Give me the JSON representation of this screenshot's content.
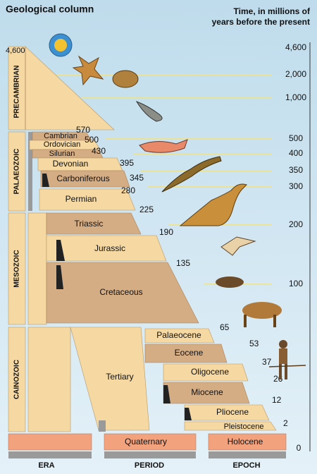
{
  "header": {
    "title": "Geological column",
    "time_label": [
      "Time, in millions of",
      "years before the present"
    ]
  },
  "top_left_label": "4,600",
  "eras": [
    {
      "label": "PRECAMBRIAN"
    },
    {
      "label": "PALAEOZOIC"
    },
    {
      "label": "MESOZOIC"
    },
    {
      "label": "CAINOZOIC"
    }
  ],
  "periods": [
    {
      "label": "Cambrian"
    },
    {
      "label": "Ordovician"
    },
    {
      "label": "Silurian"
    },
    {
      "label": "Devonian"
    },
    {
      "label": "Carboniferous"
    },
    {
      "label": "Permian"
    },
    {
      "label": "Triassic"
    },
    {
      "label": "Jurassic"
    },
    {
      "label": "Cretaceous"
    },
    {
      "label": "Tertiary"
    },
    {
      "label": "Quaternary"
    }
  ],
  "epochs": [
    {
      "label": "Palaeocene"
    },
    {
      "label": "Eocene"
    },
    {
      "label": "Oligocene"
    },
    {
      "label": "Miocene"
    },
    {
      "label": "Pliocene"
    },
    {
      "label": "Pleistocene"
    },
    {
      "label": "Holocene"
    }
  ],
  "boundaries": [
    "570",
    "500",
    "430",
    "395",
    "345",
    "280",
    "225",
    "190",
    "135",
    "65",
    "53",
    "37",
    "26",
    "12",
    "2"
  ],
  "time_scale": [
    "4,600",
    "2,000",
    "1,000",
    "500",
    "400",
    "350",
    "300",
    "200",
    "100",
    "0"
  ],
  "footer": [
    "ERA",
    "PERIOD",
    "EPOCH"
  ]
}
